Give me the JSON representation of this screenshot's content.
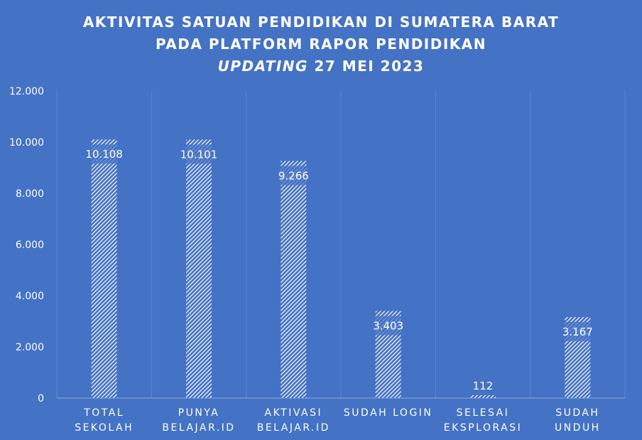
{
  "chart_data": {
    "type": "bar",
    "title_lines": [
      "AKTIVITAS SATUAN PENDIDIKAN DI SUMATERA BARAT",
      "PADA PLATFORM RAPOR PENDIDIKAN"
    ],
    "title_update_italic": "UPDATING",
    "title_update_rest": " 27 MEI 2023",
    "categories": [
      [
        "TOTAL",
        "SEKOLAH"
      ],
      [
        "PUNYA",
        "BELAJAR.ID"
      ],
      [
        "AKTIVASI",
        "BELAJAR.ID"
      ],
      [
        "SUDAH LOGIN"
      ],
      [
        "SELESAI",
        "EKSPLORASI"
      ],
      [
        "SUDAH",
        "UNDUH"
      ]
    ],
    "values": [
      10108,
      10101,
      9266,
      3403,
      112,
      3167
    ],
    "data_labels": [
      "10.108",
      "10.101",
      "9.266",
      "3.403",
      "112",
      "3.167"
    ],
    "ylim": [
      0,
      12000
    ],
    "yticks": [
      "0",
      "2.000",
      "4.000",
      "6.000",
      "8.000",
      "10.000",
      "12.000"
    ],
    "xlabel": "",
    "ylabel": "",
    "grid": "vertical category separators",
    "legend": "none",
    "colors": {
      "background": "#4472c4",
      "bar_hatch": "#ffffff",
      "axis": "#8eaadb"
    }
  }
}
